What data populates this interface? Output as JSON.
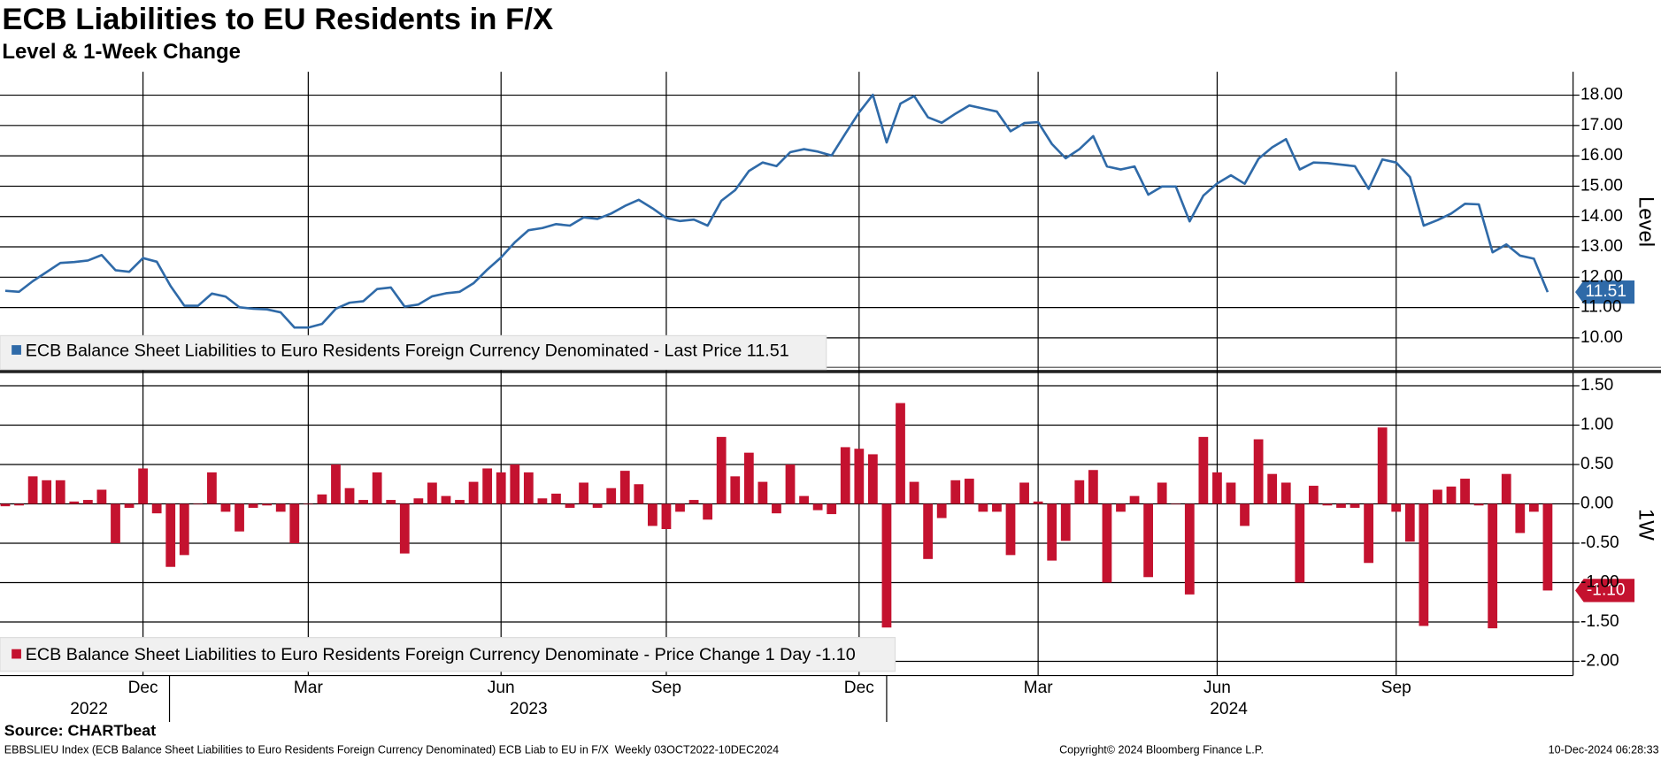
{
  "title": "ECB Liabilities to EU Residents in F/X",
  "subtitle": "Level & 1-Week Change",
  "source": "Source: CHARTbeat",
  "footer": "EBBSLIEU Index (ECB Balance Sheet Liabilities to Euro Residents Foreign Currency Denominated) ECB Liab to EU in F/X  Weekly 03OCT2022-10DEC2024",
  "copyright": "Copyright© 2024 Bloomberg Finance L.P.",
  "timestamp": "10-Dec-2024 06:28:33",
  "chart_data": [
    {
      "type": "line",
      "y_label": "Level",
      "grid": true,
      "ylim": [
        8.96,
        18.77
      ],
      "yticks": [
        {
          "value": 10,
          "label": "10.00"
        },
        {
          "value": 11,
          "label": "11.00"
        },
        {
          "value": 12,
          "label": "12.00"
        },
        {
          "value": 13,
          "label": "13.00"
        },
        {
          "value": 14,
          "label": "14.00"
        },
        {
          "value": 15,
          "label": "15.00"
        },
        {
          "value": 16,
          "label": "16.00"
        },
        {
          "value": 17,
          "label": "17.00"
        },
        {
          "value": 18,
          "label": "18.00"
        }
      ],
      "series": [
        {
          "name": "ECB Balance Sheet Liabilities to Euro Residents Foreign Currency Denominated - Last Price 11.51",
          "color": "#2f6aa8",
          "values": [
            11.55,
            11.52,
            11.87,
            12.17,
            12.47,
            12.5,
            12.55,
            12.73,
            12.23,
            12.18,
            12.63,
            12.51,
            11.71,
            11.06,
            11.06,
            11.46,
            11.36,
            11.01,
            10.96,
            10.94,
            10.84,
            10.34,
            10.34,
            10.46,
            10.96,
            11.16,
            11.21,
            11.61,
            11.66,
            11.03,
            11.1,
            11.37,
            11.47,
            11.52,
            11.8,
            12.25,
            12.65,
            13.15,
            13.55,
            13.62,
            13.75,
            13.7,
            13.97,
            13.92,
            14.1,
            14.35,
            14.55,
            14.27,
            13.95,
            13.85,
            13.9,
            13.7,
            14.52,
            14.87,
            15.5,
            15.78,
            15.66,
            16.12,
            16.22,
            16.14,
            16.01,
            16.73,
            17.43,
            18.01,
            16.44,
            17.72,
            17.97,
            17.27,
            17.09,
            17.39,
            17.66,
            17.56,
            17.46,
            16.81,
            17.08,
            17.11,
            16.39,
            15.92,
            16.22,
            16.65,
            15.65,
            15.55,
            15.65,
            14.72,
            14.99,
            14.99,
            13.84,
            14.69,
            15.09,
            15.36,
            15.08,
            15.9,
            16.28,
            16.55,
            15.55,
            15.78,
            15.76,
            15.71,
            15.66,
            14.91,
            15.88,
            15.78,
            15.3,
            13.7,
            13.88,
            14.1,
            14.42,
            14.4,
            12.82,
            13.08,
            12.71,
            12.61,
            11.51
          ]
        }
      ]
    },
    {
      "type": "bar",
      "y_label": "1W",
      "grid": true,
      "ylim": [
        -2.18,
        1.64
      ],
      "yticks": [
        {
          "value": 1.5,
          "label": "1.50"
        },
        {
          "value": 1,
          "label": "1.00"
        },
        {
          "value": 0.5,
          "label": "0.50"
        },
        {
          "value": 0,
          "label": "0.00"
        },
        {
          "value": -0.5,
          "label": "-0.50"
        },
        {
          "value": -1,
          "label": "-1.00"
        },
        {
          "value": -1.5,
          "label": "-1.50"
        },
        {
          "value": -2,
          "label": "-2.00"
        }
      ],
      "categories": [
        null,
        null,
        null,
        null,
        null,
        null,
        null,
        null,
        null,
        null,
        "Dec",
        null,
        null,
        null,
        null,
        null,
        null,
        null,
        null,
        null,
        null,
        null,
        "Mar",
        null,
        null,
        null,
        null,
        null,
        null,
        null,
        null,
        null,
        null,
        null,
        null,
        null,
        "Jun",
        null,
        null,
        null,
        null,
        null,
        null,
        null,
        null,
        null,
        null,
        null,
        "Sep",
        null,
        null,
        null,
        null,
        null,
        null,
        null,
        null,
        null,
        null,
        null,
        null,
        null,
        "Dec",
        null,
        null,
        null,
        null,
        null,
        null,
        null,
        null,
        null,
        null,
        null,
        null,
        "Mar",
        null,
        null,
        null,
        null,
        null,
        null,
        null,
        null,
        null,
        null,
        null,
        null,
        "Jun",
        null,
        null,
        null,
        null,
        null,
        null,
        null,
        null,
        null,
        null,
        null,
        null,
        "Sep",
        null,
        null,
        null,
        null,
        null,
        null,
        null,
        null,
        null,
        null,
        null
      ],
      "x_year_labels": [
        "2022",
        "2023",
        "2024"
      ],
      "series": [
        {
          "name": "ECB Balance Sheet Liabilities to Euro Residents Foreign Currency Denominate - Price Change 1 Day -1.10",
          "color": "#c4122f",
          "values": [
            -0.03,
            -0.02,
            0.35,
            0.3,
            0.3,
            0.03,
            0.05,
            0.18,
            -0.5,
            -0.05,
            0.45,
            -0.12,
            -0.8,
            -0.65,
            0,
            0.4,
            -0.1,
            -0.35,
            -0.05,
            -0.02,
            -0.1,
            -0.5,
            0,
            0.12,
            0.5,
            0.2,
            0.05,
            0.4,
            0.05,
            -0.63,
            0.07,
            0.27,
            0.1,
            0.05,
            0.28,
            0.45,
            0.4,
            0.5,
            0.4,
            0.07,
            0.13,
            -0.05,
            0.27,
            -0.05,
            0.2,
            0.42,
            0.25,
            -0.28,
            -0.32,
            -0.1,
            0.05,
            -0.2,
            0.85,
            0.35,
            0.65,
            0.28,
            -0.12,
            0.5,
            0.1,
            -0.08,
            -0.13,
            0.72,
            0.7,
            0.63,
            -1.57,
            1.28,
            0.28,
            -0.7,
            -0.18,
            0.3,
            0.32,
            -0.1,
            -0.1,
            -0.65,
            0.27,
            0.03,
            -0.72,
            -0.47,
            0.3,
            0.43,
            -1,
            -0.1,
            0.1,
            -0.93,
            0.27,
            0,
            -1.15,
            0.85,
            0.4,
            0.27,
            -0.28,
            0.82,
            0.38,
            0.27,
            -1,
            0.23,
            -0.02,
            -0.05,
            -0.05,
            -0.75,
            0.97,
            -0.1,
            -0.48,
            -1.55,
            0.18,
            0.22,
            0.32,
            -0.02,
            -1.58,
            0.38,
            -0.37,
            -0.1,
            -1.1
          ],
          "value_labels": [
            null,
            null,
            null,
            null,
            null,
            null,
            null,
            null,
            null,
            null,
            null,
            null,
            null,
            null,
            null,
            null,
            null,
            null,
            null,
            null,
            null,
            null,
            null,
            null,
            null,
            null,
            null,
            null,
            null,
            null,
            null,
            null,
            null,
            null,
            null,
            null,
            null,
            null,
            null,
            null,
            null,
            null,
            null,
            null,
            null,
            null,
            null,
            null,
            null,
            null,
            null,
            null,
            null,
            null,
            null,
            null,
            null,
            null,
            null,
            null,
            null,
            null,
            null,
            null,
            null,
            null,
            null,
            null,
            null,
            null,
            null,
            null,
            null,
            null,
            null,
            null,
            null,
            null,
            null,
            null,
            null,
            null,
            null,
            null,
            null,
            null,
            null,
            null,
            null,
            null,
            null,
            null,
            null,
            null,
            null,
            null,
            null,
            null,
            null,
            null,
            null,
            null,
            null,
            null,
            null,
            null,
            null,
            null,
            null,
            null,
            null,
            null,
            "-1.10"
          ]
        }
      ]
    }
  ]
}
